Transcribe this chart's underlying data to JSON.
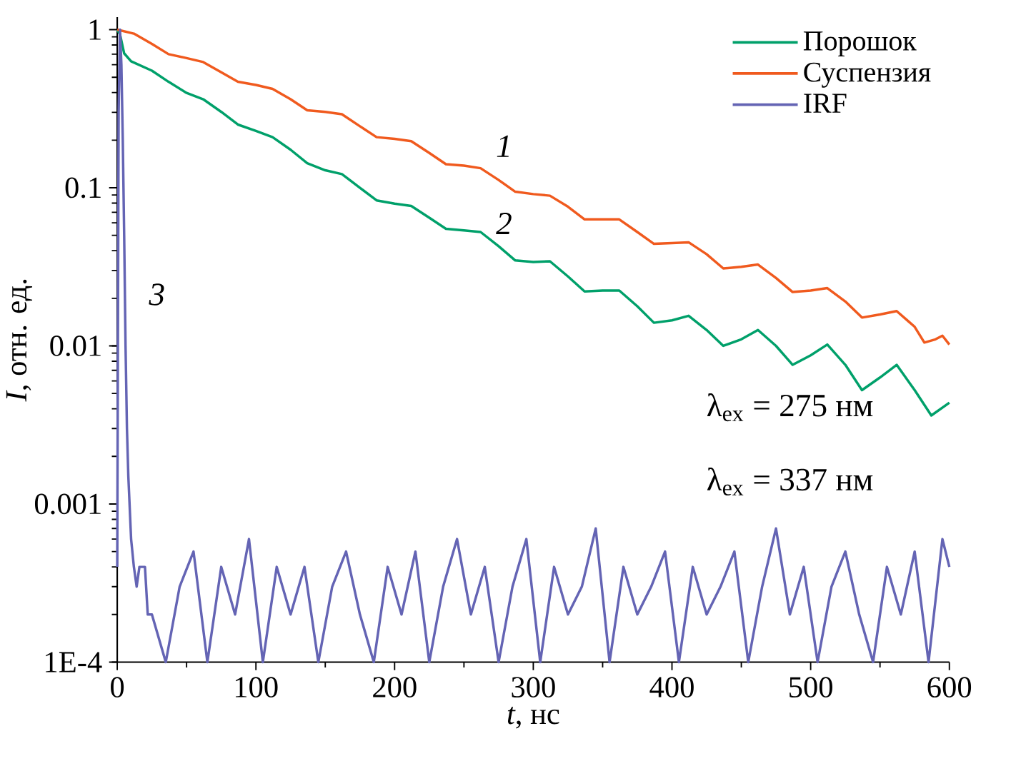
{
  "chart_data": {
    "type": "line",
    "xlabel": "*t*, нс",
    "ylabel": "*I*, отн. ед.",
    "log": "y",
    "legend": "top right",
    "xlim": [
      0,
      600
    ],
    "ylim": [
      0.0001,
      1.2
    ],
    "xticks": [
      0,
      100,
      200,
      300,
      400,
      500,
      600
    ],
    "yticks": [
      {
        "value": 0.0001,
        "label": "1E-4"
      },
      0.001,
      0.01,
      0.1,
      1
    ],
    "series": [
      {
        "name": "Порошок",
        "color": "#00a06a",
        "x": [
          0,
          2,
          5,
          10,
          25,
          37,
          50,
          62,
          75,
          87,
          100,
          112,
          125,
          137,
          150,
          162,
          175,
          187,
          200,
          212,
          225,
          237,
          250,
          262,
          275,
          287,
          300,
          312,
          325,
          337,
          350,
          362,
          375,
          387,
          400,
          412,
          425,
          437,
          450,
          462,
          475,
          487,
          500,
          512,
          525,
          537,
          550,
          562,
          575,
          587,
          600
        ],
        "values": [
          1,
          0.933,
          0.708,
          0.631,
          0.55,
          0.468,
          0.398,
          0.363,
          0.302,
          0.251,
          0.229,
          0.209,
          0.174,
          0.143,
          0.129,
          0.122,
          0.1,
          0.0832,
          0.0794,
          0.0767,
          0.0646,
          0.055,
          0.0537,
          0.0525,
          0.0427,
          0.0347,
          0.0339,
          0.0343,
          0.0275,
          0.0221,
          0.0224,
          0.0224,
          0.0178,
          0.014,
          0.0145,
          0.0155,
          0.0126,
          0.01,
          0.011,
          0.0126,
          0.01,
          0.00759,
          0.00871,
          0.0102,
          0.00759,
          0.00525,
          0.00631,
          0.00759,
          0.00525,
          0.00363,
          0.00437
        ]
      },
      {
        "name": "Суспензия",
        "color": "#f05a1e",
        "x": [
          0,
          12,
          25,
          37,
          50,
          62,
          75,
          87,
          100,
          112,
          125,
          137,
          150,
          162,
          175,
          187,
          200,
          212,
          225,
          237,
          250,
          262,
          275,
          287,
          300,
          312,
          325,
          337,
          350,
          362,
          375,
          387,
          400,
          412,
          425,
          437,
          450,
          462,
          475,
          487,
          500,
          512,
          525,
          537,
          550,
          562,
          575,
          582,
          590,
          595,
          600
        ],
        "values": [
          1,
          0.944,
          0.813,
          0.7,
          0.661,
          0.624,
          0.537,
          0.468,
          0.447,
          0.422,
          0.363,
          0.309,
          0.302,
          0.292,
          0.245,
          0.209,
          0.204,
          0.197,
          0.166,
          0.141,
          0.138,
          0.133,
          0.112,
          0.0944,
          0.0912,
          0.0891,
          0.0759,
          0.0631,
          0.0631,
          0.0631,
          0.0525,
          0.0442,
          0.0447,
          0.0452,
          0.038,
          0.0309,
          0.0316,
          0.0327,
          0.0269,
          0.0219,
          0.0224,
          0.0232,
          0.0191,
          0.0151,
          0.0158,
          0.0166,
          0.0132,
          0.0105,
          0.011,
          0.0116,
          0.0102
        ]
      },
      {
        "name": "IRF",
        "color": "#6464b4",
        "x": [
          0,
          1,
          2,
          3,
          4,
          5,
          6,
          7,
          8,
          10,
          12,
          14,
          16,
          20,
          22,
          25,
          35,
          45,
          55,
          65,
          75,
          85,
          95,
          105,
          115,
          125,
          135,
          145,
          155,
          165,
          175,
          185,
          195,
          205,
          215,
          225,
          235,
          245,
          255,
          265,
          275,
          285,
          295,
          305,
          315,
          325,
          335,
          345,
          355,
          365,
          375,
          385,
          395,
          405,
          415,
          425,
          435,
          445,
          455,
          465,
          475,
          485,
          495,
          505,
          515,
          525,
          535,
          545,
          555,
          565,
          575,
          585,
          595,
          600
        ],
        "values": [
          0.0004,
          0.3,
          1,
          0.6,
          0.2,
          0.05,
          0.01,
          0.003,
          0.0015,
          0.0006,
          0.0004,
          0.0003,
          0.0004,
          0.0004,
          0.0002,
          0.0002,
          0.0001,
          0.0003,
          0.0005,
          0.0001,
          0.0004,
          0.0002,
          0.0006,
          0.0001,
          0.0004,
          0.0002,
          0.0004,
          0.0001,
          0.0003,
          0.0005,
          0.0002,
          0.0001,
          0.0004,
          0.0002,
          0.0005,
          0.0001,
          0.0003,
          0.0006,
          0.0002,
          0.0004,
          0.0001,
          0.0003,
          0.0006,
          0.0001,
          0.0004,
          0.0002,
          0.0003,
          0.0007,
          0.0001,
          0.0004,
          0.0002,
          0.0003,
          0.0005,
          0.0001,
          0.0004,
          0.0002,
          0.0003,
          0.0005,
          0.0001,
          0.0003,
          0.0007,
          0.0002,
          0.0004,
          0.0001,
          0.0003,
          0.0005,
          0.0002,
          0.0001,
          0.0004,
          0.0002,
          0.0005,
          0.0001,
          0.0006,
          0.0004
        ]
      }
    ],
    "annotations": [
      "1",
      "2",
      "3",
      "λ$_{ex}$ = 275 нм",
      "λ$_{ex}$ = 337 нм"
    ]
  }
}
